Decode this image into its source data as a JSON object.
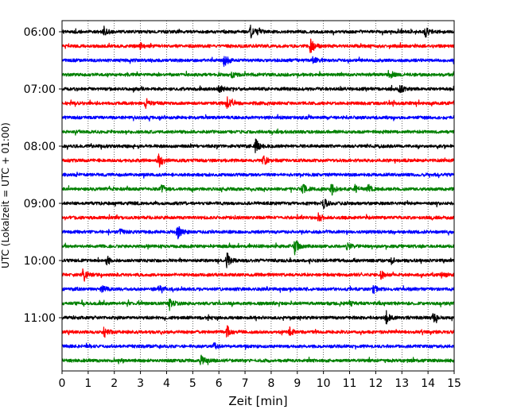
{
  "chart_data": {
    "type": "line",
    "title": "",
    "xlabel": "Zeit  [min]",
    "ylabel": "UTC (Lokalzeit = UTC + 01:00)",
    "xlim": [
      0,
      15
    ],
    "x_ticks": [
      "0",
      "1",
      "2",
      "3",
      "4",
      "5",
      "6",
      "7",
      "8",
      "9",
      "10",
      "11",
      "12",
      "13",
      "14",
      "15"
    ],
    "y_ticks": [
      {
        "label": "06:00",
        "trace": 0
      },
      {
        "label": "07:00",
        "trace": 4
      },
      {
        "label": "08:00",
        "trace": 8
      },
      {
        "label": "09:00",
        "trace": 12
      },
      {
        "label": "10:00",
        "trace": 16
      },
      {
        "label": "11:00",
        "trace": 20
      }
    ],
    "grid": "vertical dotted",
    "trace_interval_min": 15,
    "colors": [
      "#000000",
      "#ff0000",
      "#0000ff",
      "#008000"
    ],
    "series": [
      {
        "start": "06:00",
        "color": "#000000",
        "events": [
          [
            1.6,
            0.5
          ],
          [
            7.2,
            0.7
          ],
          [
            7.5,
            0.4
          ],
          [
            13.9,
            0.6
          ]
        ]
      },
      {
        "start": "06:15",
        "color": "#ff0000",
        "events": [
          [
            9.5,
            1.0
          ],
          [
            3.0,
            0.3
          ]
        ]
      },
      {
        "start": "06:30",
        "color": "#0000ff",
        "events": [
          [
            6.2,
            0.8
          ],
          [
            9.6,
            0.4
          ]
        ]
      },
      {
        "start": "06:45",
        "color": "#008000",
        "events": [
          [
            6.5,
            0.3
          ],
          [
            12.5,
            0.6
          ]
        ]
      },
      {
        "start": "07:00",
        "color": "#000000",
        "events": [
          [
            6.0,
            0.5
          ],
          [
            12.9,
            0.6
          ]
        ]
      },
      {
        "start": "07:15",
        "color": "#ff0000",
        "events": [
          [
            3.2,
            0.6
          ],
          [
            6.3,
            0.7
          ]
        ]
      },
      {
        "start": "07:30",
        "color": "#0000ff",
        "events": []
      },
      {
        "start": "07:45",
        "color": "#008000",
        "events": []
      },
      {
        "start": "08:00",
        "color": "#000000",
        "events": [
          [
            7.4,
            0.8
          ]
        ]
      },
      {
        "start": "08:15",
        "color": "#ff0000",
        "events": [
          [
            3.7,
            1.0
          ],
          [
            7.7,
            0.6
          ]
        ]
      },
      {
        "start": "08:30",
        "color": "#0000ff",
        "events": []
      },
      {
        "start": "08:45",
        "color": "#008000",
        "events": [
          [
            3.8,
            0.5
          ],
          [
            9.2,
            0.6
          ],
          [
            10.3,
            0.7
          ],
          [
            11.2,
            0.4
          ],
          [
            11.7,
            0.5
          ]
        ]
      },
      {
        "start": "09:00",
        "color": "#000000",
        "events": [
          [
            10.0,
            0.6
          ]
        ]
      },
      {
        "start": "09:15",
        "color": "#ff0000",
        "events": [
          [
            9.8,
            0.5
          ]
        ]
      },
      {
        "start": "09:30",
        "color": "#0000ff",
        "events": [
          [
            4.4,
            0.9
          ],
          [
            2.2,
            0.3
          ]
        ]
      },
      {
        "start": "09:45",
        "color": "#008000",
        "events": [
          [
            8.9,
            0.9
          ],
          [
            10.9,
            0.4
          ]
        ]
      },
      {
        "start": "10:00",
        "color": "#000000",
        "events": [
          [
            1.7,
            0.6
          ],
          [
            6.3,
            0.8
          ],
          [
            12.6,
            0.4
          ]
        ]
      },
      {
        "start": "10:15",
        "color": "#ff0000",
        "events": [
          [
            0.8,
            0.9
          ],
          [
            12.2,
            0.5
          ],
          [
            14.5,
            0.4
          ]
        ]
      },
      {
        "start": "10:30",
        "color": "#0000ff",
        "events": [
          [
            1.5,
            0.5
          ],
          [
            3.7,
            0.4
          ],
          [
            11.9,
            0.5
          ]
        ]
      },
      {
        "start": "10:45",
        "color": "#008000",
        "events": [
          [
            4.1,
            0.6
          ],
          [
            11.0,
            0.3
          ]
        ]
      },
      {
        "start": "11:00",
        "color": "#000000",
        "events": [
          [
            12.4,
            0.7
          ],
          [
            14.2,
            0.6
          ]
        ]
      },
      {
        "start": "11:15",
        "color": "#ff0000",
        "events": [
          [
            1.6,
            0.6
          ],
          [
            6.3,
            0.9
          ],
          [
            8.7,
            0.5
          ]
        ]
      },
      {
        "start": "11:30",
        "color": "#0000ff",
        "events": [
          [
            5.8,
            0.4
          ]
        ]
      },
      {
        "start": "11:45",
        "color": "#008000",
        "events": [
          [
            5.3,
            0.7
          ]
        ]
      }
    ]
  }
}
